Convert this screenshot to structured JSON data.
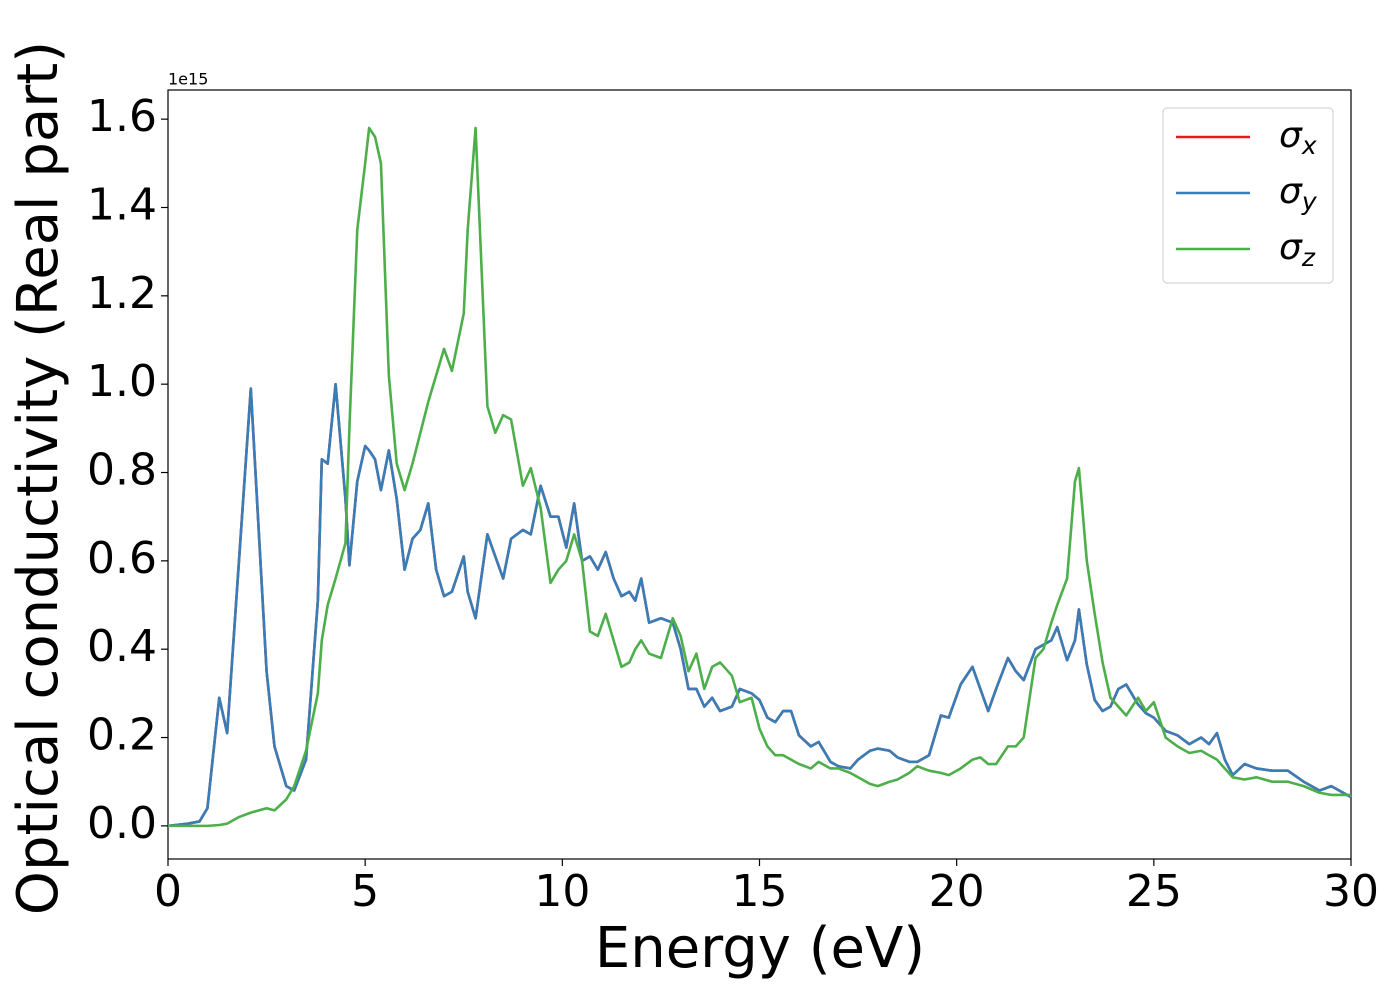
{
  "chart_data": {
    "type": "line",
    "xlabel": "Energy (eV)",
    "ylabel": "Optical conductivity (Real part)",
    "y_offset_label": "1e15",
    "xlim": [
      0,
      30
    ],
    "ylim": [
      -0.075,
      1.666
    ],
    "xticks": [
      0,
      5,
      10,
      15,
      20,
      25,
      30
    ],
    "yticks": [
      {
        "value": 0,
        "label": "0.0"
      },
      0.2,
      0.4,
      0.6,
      0.8,
      {
        "value": 1,
        "label": "1.0"
      },
      1.2,
      1.4,
      1.6
    ],
    "grid": false,
    "legend": "upper right",
    "x": [
      0,
      0.5,
      0.8,
      1.0,
      1.3,
      1.5,
      1.8,
      2.1,
      2.5,
      2.7,
      3.0,
      3.2,
      3.5,
      3.8,
      3.9,
      4.05,
      4.25,
      4.5,
      4.6,
      4.8,
      5.0,
      5.1,
      5.25,
      5.4,
      5.6,
      5.8,
      6.0,
      6.2,
      6.4,
      6.6,
      6.8,
      7.0,
      7.2,
      7.5,
      7.6,
      7.8,
      8.1,
      8.3,
      8.5,
      8.7,
      9.0,
      9.2,
      9.45,
      9.7,
      9.9,
      10.1,
      10.3,
      10.5,
      10.7,
      10.9,
      11.1,
      11.3,
      11.5,
      11.7,
      11.85,
      12.0,
      12.2,
      12.5,
      12.8,
      13.0,
      13.2,
      13.4,
      13.6,
      13.8,
      14.0,
      14.3,
      14.5,
      14.8,
      15.0,
      15.2,
      15.4,
      15.6,
      15.8,
      16.0,
      16.3,
      16.5,
      16.8,
      17.0,
      17.3,
      17.5,
      17.8,
      18.0,
      18.3,
      18.5,
      18.8,
      19.0,
      19.3,
      19.6,
      19.8,
      20.1,
      20.4,
      20.6,
      20.8,
      21.0,
      21.3,
      21.5,
      21.7,
      22.0,
      22.2,
      22.4,
      22.55,
      22.8,
      23.0,
      23.1,
      23.3,
      23.5,
      23.7,
      23.9,
      24.1,
      24.3,
      24.6,
      24.8,
      25.0,
      25.3,
      25.6,
      25.9,
      26.2,
      26.4,
      26.6,
      26.8,
      27.0,
      27.3,
      27.6,
      28.0,
      28.4,
      28.8,
      29.2,
      29.5,
      30
    ],
    "series": [
      {
        "name": "σx",
        "color": "#e41a1c",
        "values": [
          0,
          0.005,
          0.01,
          0.04,
          0.29,
          0.21,
          0.6,
          0.99,
          0.35,
          0.18,
          0.09,
          0.08,
          0.15,
          0.51,
          0.83,
          0.82,
          1.0,
          0.74,
          0.59,
          0.78,
          0.86,
          0.85,
          0.83,
          0.76,
          0.85,
          0.74,
          0.58,
          0.65,
          0.67,
          0.73,
          0.58,
          0.52,
          0.53,
          0.61,
          0.53,
          0.47,
          0.66,
          0.61,
          0.56,
          0.65,
          0.67,
          0.66,
          0.77,
          0.7,
          0.7,
          0.63,
          0.73,
          0.6,
          0.61,
          0.58,
          0.62,
          0.56,
          0.52,
          0.53,
          0.51,
          0.56,
          0.46,
          0.47,
          0.46,
          0.4,
          0.31,
          0.31,
          0.27,
          0.29,
          0.26,
          0.27,
          0.31,
          0.3,
          0.285,
          0.245,
          0.235,
          0.26,
          0.26,
          0.205,
          0.18,
          0.19,
          0.145,
          0.135,
          0.13,
          0.15,
          0.17,
          0.175,
          0.17,
          0.155,
          0.145,
          0.145,
          0.16,
          0.25,
          0.245,
          0.32,
          0.36,
          0.31,
          0.26,
          0.31,
          0.38,
          0.35,
          0.33,
          0.4,
          0.41,
          0.42,
          0.45,
          0.375,
          0.42,
          0.49,
          0.365,
          0.285,
          0.26,
          0.27,
          0.31,
          0.32,
          0.275,
          0.255,
          0.245,
          0.215,
          0.205,
          0.185,
          0.2,
          0.185,
          0.21,
          0.15,
          0.115,
          0.14,
          0.13,
          0.125,
          0.125,
          0.1,
          0.08,
          0.09,
          0.065
        ]
      },
      {
        "name": "σy",
        "color": "#377eb8",
        "values": [
          0,
          0.005,
          0.01,
          0.04,
          0.29,
          0.21,
          0.6,
          0.99,
          0.35,
          0.18,
          0.09,
          0.08,
          0.15,
          0.51,
          0.83,
          0.82,
          1.0,
          0.74,
          0.59,
          0.78,
          0.86,
          0.85,
          0.83,
          0.76,
          0.85,
          0.74,
          0.58,
          0.65,
          0.67,
          0.73,
          0.58,
          0.52,
          0.53,
          0.61,
          0.53,
          0.47,
          0.66,
          0.61,
          0.56,
          0.65,
          0.67,
          0.66,
          0.77,
          0.7,
          0.7,
          0.63,
          0.73,
          0.6,
          0.61,
          0.58,
          0.62,
          0.56,
          0.52,
          0.53,
          0.51,
          0.56,
          0.46,
          0.47,
          0.46,
          0.4,
          0.31,
          0.31,
          0.27,
          0.29,
          0.26,
          0.27,
          0.31,
          0.3,
          0.285,
          0.245,
          0.235,
          0.26,
          0.26,
          0.205,
          0.18,
          0.19,
          0.145,
          0.135,
          0.13,
          0.15,
          0.17,
          0.175,
          0.17,
          0.155,
          0.145,
          0.145,
          0.16,
          0.25,
          0.245,
          0.32,
          0.36,
          0.31,
          0.26,
          0.31,
          0.38,
          0.35,
          0.33,
          0.4,
          0.41,
          0.42,
          0.45,
          0.375,
          0.42,
          0.49,
          0.365,
          0.285,
          0.26,
          0.27,
          0.31,
          0.32,
          0.275,
          0.255,
          0.245,
          0.215,
          0.205,
          0.185,
          0.2,
          0.185,
          0.21,
          0.15,
          0.115,
          0.14,
          0.13,
          0.125,
          0.125,
          0.1,
          0.08,
          0.09,
          0.065
        ]
      },
      {
        "name": "σz",
        "color": "#4daf4a",
        "values": [
          0,
          0,
          0,
          0,
          0.002,
          0.005,
          0.02,
          0.03,
          0.04,
          0.035,
          0.06,
          0.09,
          0.17,
          0.3,
          0.42,
          0.5,
          0.56,
          0.64,
          0.9,
          1.35,
          1.5,
          1.58,
          1.56,
          1.5,
          1.02,
          0.82,
          0.76,
          0.82,
          0.89,
          0.96,
          1.02,
          1.08,
          1.03,
          1.16,
          1.35,
          1.58,
          0.95,
          0.89,
          0.93,
          0.92,
          0.77,
          0.81,
          0.72,
          0.55,
          0.58,
          0.6,
          0.66,
          0.6,
          0.44,
          0.43,
          0.48,
          0.42,
          0.36,
          0.37,
          0.4,
          0.42,
          0.39,
          0.38,
          0.47,
          0.43,
          0.35,
          0.39,
          0.31,
          0.36,
          0.37,
          0.34,
          0.28,
          0.29,
          0.22,
          0.18,
          0.16,
          0.16,
          0.15,
          0.14,
          0.13,
          0.145,
          0.13,
          0.13,
          0.12,
          0.11,
          0.095,
          0.09,
          0.1,
          0.105,
          0.12,
          0.135,
          0.125,
          0.12,
          0.115,
          0.13,
          0.15,
          0.155,
          0.14,
          0.14,
          0.18,
          0.18,
          0.2,
          0.38,
          0.4,
          0.46,
          0.5,
          0.56,
          0.78,
          0.81,
          0.6,
          0.48,
          0.37,
          0.29,
          0.27,
          0.25,
          0.29,
          0.26,
          0.28,
          0.2,
          0.18,
          0.165,
          0.17,
          0.16,
          0.15,
          0.13,
          0.11,
          0.105,
          0.11,
          0.1,
          0.1,
          0.09,
          0.075,
          0.07,
          0.07
        ]
      }
    ]
  }
}
